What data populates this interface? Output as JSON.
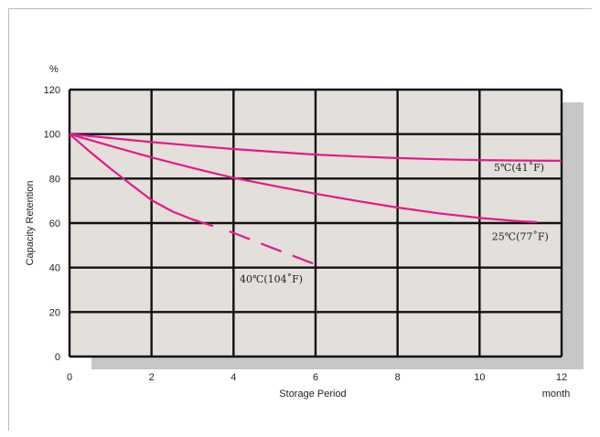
{
  "chart_data": {
    "type": "line",
    "xlabel": "Storage Period",
    "x_unit": "month",
    "ylabel": "Capacity Retention",
    "y_unit": "%",
    "xlim": [
      0,
      12
    ],
    "ylim": [
      0,
      120
    ],
    "x_ticks": [
      0,
      2,
      4,
      6,
      8,
      10,
      12
    ],
    "y_ticks": [
      0,
      20,
      40,
      60,
      80,
      100,
      120
    ],
    "grid": true,
    "colors": {
      "plot_background": "#e3dfda",
      "shadow": "#c7c7c7",
      "grid": "#111111",
      "series": "#e6198a"
    },
    "series": [
      {
        "name": "5℃(41˚F)",
        "style": "solid",
        "points": [
          [
            0,
            100
          ],
          [
            1,
            98.2
          ],
          [
            2,
            96.4
          ],
          [
            3,
            94.8
          ],
          [
            4,
            93.3
          ],
          [
            5,
            92
          ],
          [
            6,
            90.8
          ],
          [
            7,
            89.9
          ],
          [
            8,
            89.2
          ],
          [
            9,
            88.7
          ],
          [
            10,
            88.3
          ],
          [
            11,
            88.1
          ],
          [
            12,
            88
          ]
        ]
      },
      {
        "name": "25℃(77˚F)",
        "style": "solid",
        "points": [
          [
            0,
            100
          ],
          [
            1,
            94.7
          ],
          [
            2,
            89.5
          ],
          [
            3,
            84.8
          ],
          [
            4,
            80.3
          ],
          [
            5,
            76.7
          ],
          [
            6,
            73.2
          ],
          [
            7,
            70
          ],
          [
            8,
            67
          ],
          [
            9,
            64.4
          ],
          [
            10,
            62.3
          ],
          [
            11,
            60.8
          ],
          [
            11.4,
            60.4
          ]
        ]
      },
      {
        "name": "40℃(104˚F)",
        "style": "solid",
        "points": [
          [
            0,
            100
          ],
          [
            0.5,
            92
          ],
          [
            1,
            84.5
          ],
          [
            1.5,
            77.3
          ],
          [
            2,
            70.3
          ],
          [
            2.5,
            65.3
          ],
          [
            3,
            61.6
          ],
          [
            3.5,
            58.7
          ]
        ]
      },
      {
        "name": "40℃(104˚F)",
        "style": "dashed",
        "points": [
          [
            3.9,
            56.3
          ],
          [
            4.5,
            52
          ],
          [
            5,
            48.4
          ],
          [
            5.5,
            44.9
          ],
          [
            6,
            41.4
          ]
        ]
      }
    ],
    "annotations": [
      {
        "text": "5℃(41˚F)",
        "x": 10.35,
        "y": 83.4
      },
      {
        "text": "25℃(77˚F)",
        "x": 10.3,
        "y": 52.3
      },
      {
        "text": "40℃(104˚F)",
        "x": 4.15,
        "y": 33.2
      }
    ]
  }
}
